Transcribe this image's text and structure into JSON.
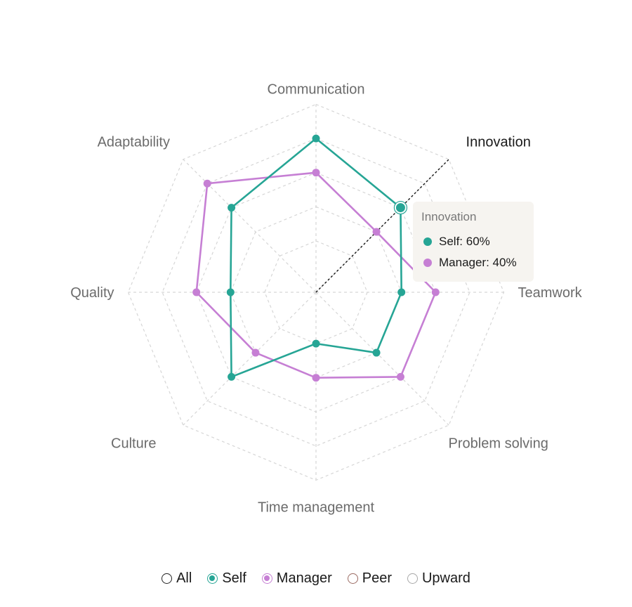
{
  "chart_data": {
    "type": "radar",
    "title": "",
    "axes": [
      "Communication",
      "Innovation",
      "Teamwork",
      "Problem solving",
      "Time management",
      "Culture",
      "Quality",
      "Adaptability"
    ],
    "range": [
      0,
      100
    ],
    "grid_rings": 5,
    "series": [
      {
        "name": "Self",
        "color": "#26a595",
        "values": [
          80,
          60,
          40,
          40,
          20,
          60,
          40,
          60
        ]
      },
      {
        "name": "Manager",
        "color": "#c67fd4",
        "values": [
          60,
          40,
          60,
          60,
          40,
          40,
          60,
          80
        ]
      }
    ],
    "active_axis": "Innovation"
  },
  "tooltip": {
    "title": "Innovation",
    "rows": [
      {
        "label": "Self: 60%",
        "color": "#26a595"
      },
      {
        "label": "Manager: 40%",
        "color": "#c67fd4"
      }
    ]
  },
  "legend": {
    "items": [
      {
        "label": "All",
        "color": "#222222",
        "checked": false
      },
      {
        "label": "Self",
        "color": "#26a595",
        "checked": true
      },
      {
        "label": "Manager",
        "color": "#c67fd4",
        "checked": true
      },
      {
        "label": "Peer",
        "color": "#9b6b63",
        "checked": false
      },
      {
        "label": "Upward",
        "color": "#a8a8a8",
        "checked": false
      }
    ]
  }
}
